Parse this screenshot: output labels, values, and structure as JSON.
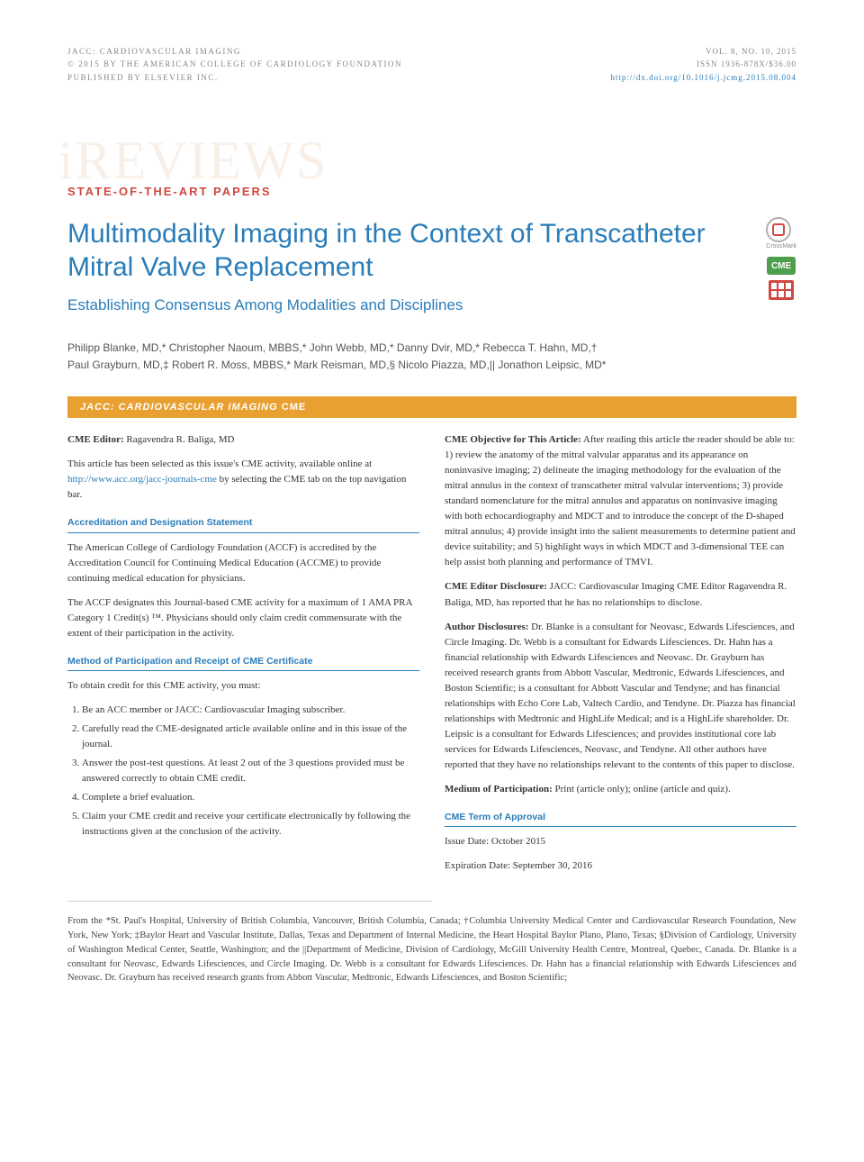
{
  "header": {
    "journal": "JACC: CARDIOVASCULAR IMAGING",
    "copyright": "© 2015 BY THE AMERICAN COLLEGE OF CARDIOLOGY FOUNDATION",
    "publisher": "PUBLISHED BY ELSEVIER INC.",
    "issue": "VOL. 8, NO. 10, 2015",
    "issn": "ISSN 1936-878X/$36.00",
    "doi": "http://dx.doi.org/10.1016/j.jcmg.2015.08.004"
  },
  "watermark": "iREVIEWS",
  "section_label": "STATE-OF-THE-ART PAPERS",
  "title": "Multimodality Imaging in the Context of Transcatheter Mitral Valve Replacement",
  "subtitle": "Establishing Consensus Among Modalities and Disciplines",
  "badges": {
    "crossmark_label": "CrossMark",
    "cme_label": "CME"
  },
  "authors_line1": "Philipp Blanke, MD,* Christopher Naoum, MBBS,* John Webb, MD,* Danny Dvir, MD,* Rebecca T. Hahn, MD,†",
  "authors_line2": "Paul Grayburn, MD,‡ Robert R. Moss, MBBS,* Mark Reisman, MD,§ Nicolo Piazza, MD,|| Jonathon Leipsic, MD*",
  "cme_banner_italic": "JACC: CARDIOVASCULAR IMAGING",
  "cme_banner_normal": " CME",
  "cme": {
    "editor_label": "CME Editor:",
    "editor_name": "Ragavendra R. Baliga, MD",
    "intro": "This article has been selected as this issue's CME activity, available online at ",
    "intro_link": "http://www.acc.org/jacc-journals-cme",
    "intro_tail": " by selecting the CME tab on the top navigation bar.",
    "accred_head": "Accreditation and Designation Statement",
    "accred_p1": "The American College of Cardiology Foundation (ACCF) is accredited by the Accreditation Council for Continuing Medical Education (ACCME) to provide continuing medical education for physicians.",
    "accred_p2": "The ACCF designates this Journal-based CME activity for a maximum of 1 AMA PRA Category 1 Credit(s) ™. Physicians should only claim credit commensurate with the extent of their participation in the activity.",
    "method_head": "Method of Participation and Receipt of CME Certificate",
    "method_intro": "To obtain credit for this CME activity, you must:",
    "method_items": [
      "Be an ACC member or JACC: Cardiovascular Imaging subscriber.",
      "Carefully read the CME-designated article available online and in this issue of the journal.",
      "Answer the post-test questions. At least 2 out of the 3 questions provided must be answered correctly to obtain CME credit.",
      "Complete a brief evaluation.",
      "Claim your CME credit and receive your certificate electronically by following the instructions given at the conclusion of the activity."
    ],
    "objective_label": "CME Objective for This Article:",
    "objective_text": "After reading this article the reader should be able to: 1) review the anatomy of the mitral valvular apparatus and its appearance on noninvasive imaging; 2) delineate the imaging methodology for the evaluation of the mitral annulus in the context of transcatheter mitral valvular interventions; 3) provide standard nomenclature for the mitral annulus and apparatus on noninvasive imaging with both echocardiography and MDCT and to introduce the concept of the D-shaped mitral annulus; 4) provide insight into the salient measurements to determine patient and device suitability; and 5) highlight ways in which MDCT and 3-dimensional TEE can help assist both planning and performance of TMVI.",
    "editor_disc_label": "CME Editor Disclosure:",
    "editor_disc_text": "JACC: Cardiovascular Imaging CME Editor Ragavendra R. Baliga, MD, has reported that he has no relationships to disclose.",
    "author_disc_label": "Author Disclosures:",
    "author_disc_text": "Dr. Blanke is a consultant for Neovasc, Edwards Lifesciences, and Circle Imaging. Dr. Webb is a consultant for Edwards Lifesciences. Dr. Hahn has a financial relationship with Edwards Lifesciences and Neovasc. Dr. Grayburn has received research grants from Abbott Vascular, Medtronic, Edwards Lifesciences, and Boston Scientific; is a consultant for Abbott Vascular and Tendyne; and has financial relationships with Echo Core Lab, Valtech Cardio, and Tendyne. Dr. Piazza has financial relationships with Medtronic and HighLife Medical; and is a HighLife shareholder. Dr. Leipsic is a consultant for Edwards Lifesciences; and provides institutional core lab services for Edwards Lifesciences, Neovasc, and Tendyne. All other authors have reported that they have no relationships relevant to the contents of this paper to disclose.",
    "medium_label": "Medium of Participation:",
    "medium_text": "Print (article only); online (article and quiz).",
    "term_head": "CME Term of Approval",
    "issue_date": "Issue Date: October 2015",
    "expiration": "Expiration Date: September 30, 2016"
  },
  "affiliations": "From the *St. Paul's Hospital, University of British Columbia, Vancouver, British Columbia, Canada; †Columbia University Medical Center and Cardiovascular Research Foundation, New York, New York; ‡Baylor Heart and Vascular Institute, Dallas, Texas and Department of Internal Medicine, the Heart Hospital Baylor Plano, Plano, Texas; §Division of Cardiology, University of Washington Medical Center, Seattle, Washington; and the ||Department of Medicine, Division of Cardiology, McGill University Health Centre, Montreal, Quebec, Canada. Dr. Blanke is a consultant for Neovasc, Edwards Lifesciences, and Circle Imaging. Dr. Webb is a consultant for Edwards Lifesciences. Dr. Hahn has a financial relationship with Edwards Lifesciences and Neovasc. Dr. Grayburn has received research grants from Abbott Vascular, Medtronic, Edwards Lifesciences, and Boston Scientific;"
}
